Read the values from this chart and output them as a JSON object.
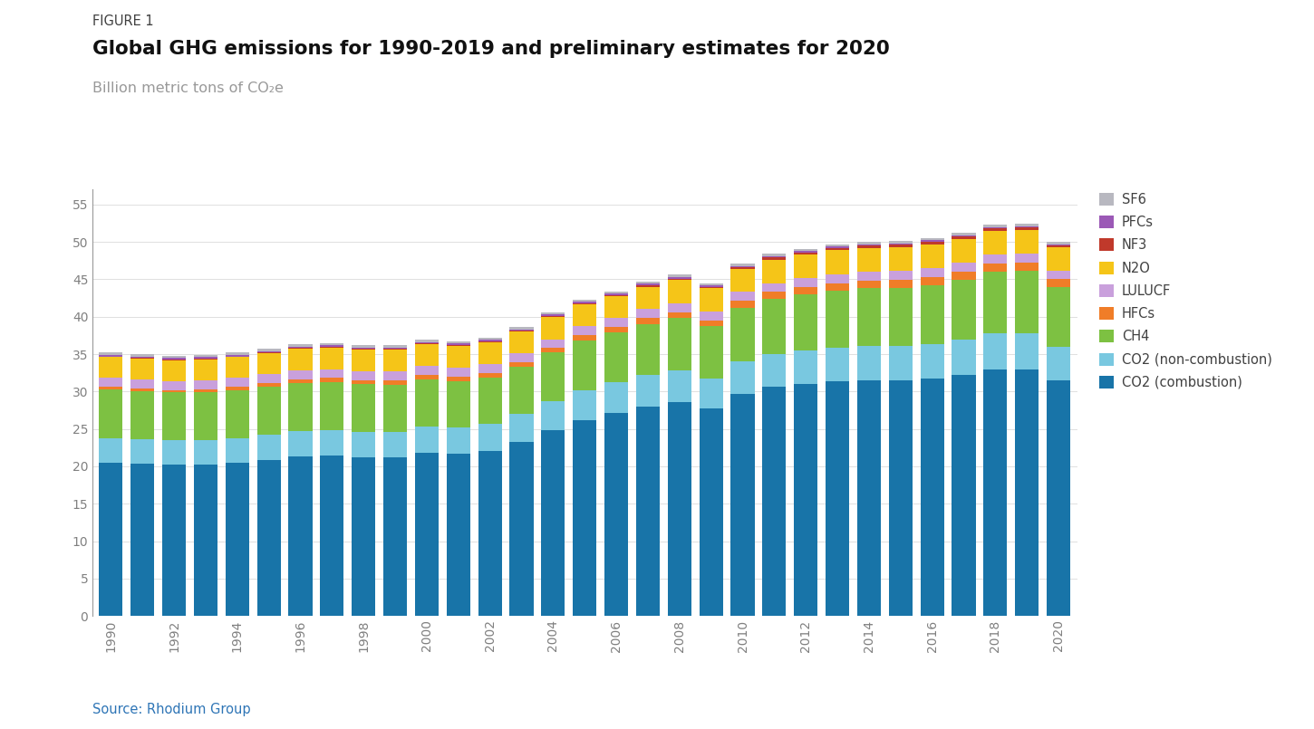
{
  "years": [
    1990,
    1991,
    1992,
    1993,
    1994,
    1995,
    1996,
    1997,
    1998,
    1999,
    2000,
    2001,
    2002,
    2003,
    2004,
    2005,
    2006,
    2007,
    2008,
    2009,
    2010,
    2011,
    2012,
    2013,
    2014,
    2015,
    2016,
    2017,
    2018,
    2019,
    2020
  ],
  "series": {
    "CO2 (combustion)": [
      20.5,
      20.4,
      20.3,
      20.3,
      20.5,
      20.9,
      21.3,
      21.5,
      21.2,
      21.2,
      21.8,
      21.7,
      22.1,
      23.3,
      24.8,
      26.2,
      27.1,
      28.0,
      28.6,
      27.7,
      29.7,
      30.6,
      31.0,
      31.4,
      31.5,
      31.5,
      31.7,
      32.2,
      33.0,
      33.0,
      31.5
    ],
    "CO2 (non-combustion)": [
      3.3,
      3.2,
      3.2,
      3.2,
      3.3,
      3.3,
      3.4,
      3.4,
      3.4,
      3.4,
      3.5,
      3.5,
      3.6,
      3.7,
      3.9,
      4.0,
      4.1,
      4.2,
      4.2,
      4.0,
      4.3,
      4.4,
      4.5,
      4.5,
      4.6,
      4.6,
      4.6,
      4.7,
      4.8,
      4.8,
      4.5
    ],
    "CH4": [
      6.5,
      6.5,
      6.4,
      6.4,
      6.4,
      6.4,
      6.4,
      6.4,
      6.4,
      6.3,
      6.3,
      6.2,
      6.2,
      6.3,
      6.5,
      6.6,
      6.7,
      6.8,
      7.0,
      7.0,
      7.2,
      7.4,
      7.5,
      7.6,
      7.7,
      7.8,
      7.9,
      8.0,
      8.2,
      8.3,
      8.0
    ],
    "HFCs": [
      0.3,
      0.3,
      0.3,
      0.4,
      0.4,
      0.5,
      0.5,
      0.5,
      0.5,
      0.6,
      0.6,
      0.6,
      0.6,
      0.6,
      0.6,
      0.7,
      0.7,
      0.8,
      0.8,
      0.8,
      0.9,
      0.9,
      1.0,
      1.0,
      1.0,
      1.0,
      1.1,
      1.1,
      1.1,
      1.1,
      1.0
    ],
    "LULUCF": [
      1.2,
      1.2,
      1.2,
      1.2,
      1.2,
      1.2,
      1.2,
      1.2,
      1.2,
      1.2,
      1.2,
      1.2,
      1.2,
      1.2,
      1.2,
      1.2,
      1.2,
      1.2,
      1.2,
      1.2,
      1.2,
      1.2,
      1.2,
      1.2,
      1.2,
      1.2,
      1.2,
      1.2,
      1.2,
      1.2,
      1.2
    ],
    "N2O": [
      2.8,
      2.8,
      2.8,
      2.8,
      2.8,
      2.8,
      2.9,
      2.9,
      2.9,
      2.9,
      2.9,
      2.9,
      2.9,
      2.9,
      3.0,
      3.0,
      3.0,
      3.0,
      3.1,
      3.1,
      3.1,
      3.1,
      3.1,
      3.2,
      3.2,
      3.2,
      3.2,
      3.2,
      3.2,
      3.2,
      3.1
    ],
    "NF3": [
      0.1,
      0.1,
      0.1,
      0.1,
      0.1,
      0.1,
      0.1,
      0.1,
      0.1,
      0.1,
      0.1,
      0.1,
      0.1,
      0.1,
      0.1,
      0.1,
      0.1,
      0.2,
      0.2,
      0.2,
      0.2,
      0.3,
      0.3,
      0.3,
      0.3,
      0.3,
      0.3,
      0.3,
      0.3,
      0.3,
      0.2
    ],
    "PFCs": [
      0.2,
      0.2,
      0.2,
      0.2,
      0.2,
      0.2,
      0.2,
      0.2,
      0.2,
      0.2,
      0.2,
      0.2,
      0.2,
      0.2,
      0.2,
      0.2,
      0.2,
      0.2,
      0.2,
      0.2,
      0.2,
      0.2,
      0.2,
      0.2,
      0.2,
      0.2,
      0.2,
      0.2,
      0.2,
      0.2,
      0.2
    ],
    "SF6": [
      0.3,
      0.3,
      0.3,
      0.3,
      0.3,
      0.3,
      0.3,
      0.3,
      0.3,
      0.3,
      0.3,
      0.3,
      0.3,
      0.3,
      0.3,
      0.3,
      0.3,
      0.3,
      0.3,
      0.3,
      0.3,
      0.3,
      0.3,
      0.3,
      0.3,
      0.3,
      0.3,
      0.3,
      0.3,
      0.3,
      0.3
    ]
  },
  "colors": {
    "CO2 (combustion)": "#1874a8",
    "CO2 (non-combustion)": "#79c8e0",
    "CH4": "#7dc142",
    "HFCs": "#f07d28",
    "LULUCF": "#c9a0dc",
    "N2O": "#f5c518",
    "NF3": "#c0392b",
    "PFCs": "#9b59b6",
    "SF6": "#b8b8c0"
  },
  "stack_order": [
    "CO2 (combustion)",
    "CO2 (non-combustion)",
    "CH4",
    "HFCs",
    "LULUCF",
    "N2O",
    "NF3",
    "PFCs",
    "SF6"
  ],
  "legend_order": [
    "SF6",
    "PFCs",
    "NF3",
    "N2O",
    "LULUCF",
    "HFCs",
    "CH4",
    "CO2 (non-combustion)",
    "CO2 (combustion)"
  ],
  "title_label": "FIGURE 1",
  "title": "Global GHG emissions for 1990-2019 and preliminary estimates for 2020",
  "subtitle": "Billion metric tons of CO₂e",
  "source": "Source: Rhodium Group",
  "source_color": "#2e75b6",
  "ylim": [
    0,
    57
  ],
  "yticks": [
    0,
    5,
    10,
    15,
    20,
    25,
    30,
    35,
    40,
    45,
    50,
    55
  ],
  "background_color": "#ffffff",
  "bar_width": 0.75,
  "axis_color": "#999999",
  "text_color": "#404040",
  "label_color": "#999999",
  "tick_label_color": "#808080"
}
